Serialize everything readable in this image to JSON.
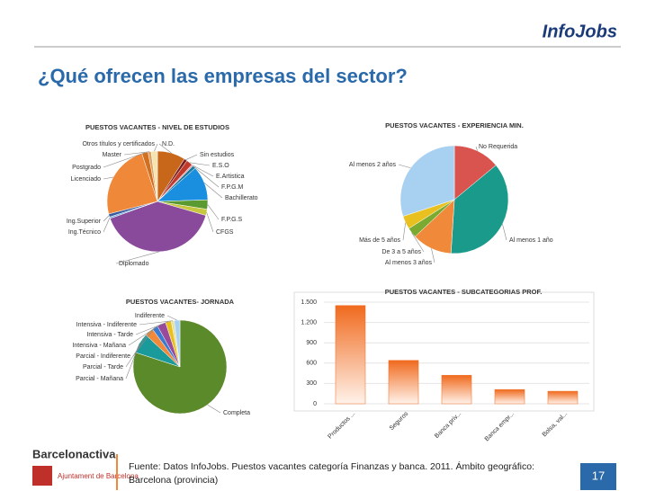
{
  "header": {
    "logo": "InfoJobs",
    "title": "¿Qué ofrecen las empresas del sector?"
  },
  "chart_data": [
    {
      "type": "pie",
      "title": "PUESTOS VACANTES - NIVEL DE ESTUDIOS",
      "categories": [
        "N.D.",
        "Sin estudios",
        "E.S.O",
        "E.Artistica",
        "F.P.G.M",
        "Bachillerato",
        "F.P.G.S",
        "CFGS",
        "Diplomado",
        "Ing.Técnico",
        "Ing.Superior",
        "Licenciado",
        "Postgrado",
        "Master",
        "Otros títulos y certificados"
      ],
      "values": [
        9,
        1,
        2,
        0.5,
        1,
        11,
        3,
        2,
        40,
        0.5,
        1,
        24,
        2,
        1,
        2
      ],
      "colors": [
        "#c8661a",
        "#7a1f1f",
        "#c0392b",
        "#e8a0b0",
        "#1c7a9c",
        "#1a8fe0",
        "#5a9a30",
        "#c8c840",
        "#8a4a9c",
        "#6ab0e0",
        "#3a5aa0",
        "#f0883a",
        "#d07020",
        "#e0a060",
        "#f4e4b0"
      ]
    },
    {
      "type": "pie",
      "title": "PUESTOS VACANTES - EXPERIENCIA MIN.",
      "categories": [
        "No Requerida",
        "Al menos 1 año",
        "Al menos 3 años",
        "De 3 a 5 años",
        "Más de 5 años",
        "Al menos 2 años"
      ],
      "values": [
        14,
        37,
        12,
        3,
        4,
        30
      ],
      "colors": [
        "#d9534f",
        "#1a9a8a",
        "#f08a3a",
        "#7aaa30",
        "#e8c020",
        "#a8d0f0"
      ]
    },
    {
      "type": "pie",
      "title": "PUESTOS VACANTES- JORNADA",
      "categories": [
        "Completa",
        "Parcial - Mañana",
        "Parcial - Tarde",
        "Parcial - Indiferente",
        "Intensiva - Mañana",
        "Intensiva - Tarde",
        "Intensiva - Indiferente",
        "Indiferente"
      ],
      "values": [
        80,
        7,
        3,
        2,
        3,
        2,
        1,
        2
      ],
      "colors": [
        "#5a8a2a",
        "#1a9a9a",
        "#f08a3a",
        "#3a7ad0",
        "#9a4a9a",
        "#e8c020",
        "#e0e0a0",
        "#a8d0f0"
      ]
    },
    {
      "type": "bar",
      "title": "PUESTOS VACANTES - SUBCATEGORIAS PROF.",
      "categories": [
        "Productos ...",
        "Seguros",
        "Banca priv...",
        "Banca empr...",
        "Bolsa, val..."
      ],
      "values": [
        1450,
        640,
        420,
        210,
        185
      ],
      "color": "#f06a1e",
      "ylim": [
        0,
        1500
      ],
      "yticks": [
        0,
        300,
        600,
        900,
        {
          "value": 1200,
          "label": "1.200"
        },
        {
          "value": 1500,
          "label": "1.500"
        }
      ],
      "grid": true
    }
  ],
  "footer": {
    "source": "Fuente:  Datos InfoJobs. Puestos vacantes categoría Finanzas y banca. 2011.  Ámbito geográfico: Barcelona (provincia)",
    "page": "17",
    "brand": "Barcelonactiva",
    "ajuntament": "Ajuntament de Barcelona"
  }
}
